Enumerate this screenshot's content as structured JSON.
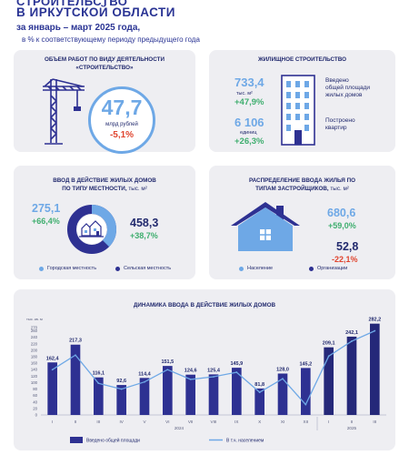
{
  "header": {
    "title_top": "СТРОИТЕЛЬСТВО",
    "title": "В ИРКУТСКОЙ ОБЛАСТИ",
    "subtitle": "за январь – март 2025 года,",
    "note": "в % к соответствующему периоду предыдущего года"
  },
  "works": {
    "title_line1": "ОБЪЕМ РАБОТ ПО ВИДУ ДЕЯТЕЛЬНОСТИ",
    "title_line2": "«СТРОИТЕЛЬСТВО»",
    "value": "47,7",
    "unit": "млрд рублей",
    "change": "-5,1%",
    "icon": "crane-icon"
  },
  "housing": {
    "title": "ЖИЛИЩНОЕ СТРОИТЕЛЬСТВО",
    "area_value": "733,4",
    "area_unit": "тыс. м²",
    "area_change": "+47,9%",
    "area_label_line1": "Введено",
    "area_label_line2": "общей площади",
    "area_label_line3": "жилых домов",
    "flats_value": "6 106",
    "flats_unit": "единиц",
    "flats_change": "+26,3%",
    "flats_label_line1": "Построено",
    "flats_label_line2": "квартир",
    "icon": "apartment-building-icon"
  },
  "locality": {
    "title_line1": "ВВОД В ДЕЙСТВИЕ ЖИЛЫХ ДОМОВ",
    "title_line2": "ПО ТИПУ МЕСТНОСТИ,",
    "unit": "тыс. м²",
    "urban_value": "275,1",
    "urban_change": "+66,4%",
    "rural_value": "458,3",
    "rural_change": "+38,7%",
    "legend_urban": "Городская местность",
    "legend_rural": "Сельская местность",
    "color_urban": "#6ea8e6",
    "color_rural": "#2e3192",
    "icon": "village-houses-icon"
  },
  "builders": {
    "title_line1": "РАСПРЕДЕЛЕНИЕ ВВОДА ЖИЛЬЯ ПО",
    "title_line2": "ТИПАМ ЗАСТРОЙЩИКОВ,",
    "unit": "тыс. м²",
    "population_value": "680,6",
    "population_change": "+59,0%",
    "org_value": "52,8",
    "org_change": "-22,1%",
    "legend_population": "Население",
    "legend_org": "Организации",
    "color_population": "#6ea8e6",
    "color_org": "#2e3192",
    "icon": "house-icon"
  },
  "chart_data": {
    "type": "bar",
    "title": "ДИНАМИКА ВВОДА В ДЕЙСТВИЕ ЖИЛЫХ ДОМОВ",
    "ylabel": "тыс. кв. м",
    "ylim": [
      0,
      270
    ],
    "yticks": [
      0,
      20,
      40,
      60,
      80,
      100,
      120,
      140,
      160,
      180,
      200,
      220,
      240,
      260,
      270
    ],
    "categories": [
      "I",
      "II",
      "III",
      "IV",
      "V",
      "VI",
      "VII",
      "VIII",
      "IX",
      "X",
      "XI",
      "XII",
      "I",
      "II",
      "III"
    ],
    "year_labels": [
      {
        "label": "2024",
        "from": 0,
        "to": 11
      },
      {
        "label": "2025",
        "from": 12,
        "to": 14
      }
    ],
    "series": [
      {
        "name": "Введено общей площади",
        "type": "bar",
        "values": [
          162.4,
          217.3,
          116.1,
          92.6,
          114.4,
          151.5,
          124.6,
          125.4,
          145.9,
          81.8,
          128.0,
          145.2,
          209.1,
          242.1,
          282.2
        ],
        "labels": [
          "162,4",
          "217,3",
          "116,1",
          "92,6",
          "114,4",
          "151,5",
          "124,6",
          "125,4",
          "145,9",
          "81,8",
          "128,0",
          "145,2",
          "209,1",
          "242,1",
          "282,2"
        ],
        "color_2024": "#2e3192",
        "color_2025": "#252879"
      },
      {
        "name": "В т.ч. населением",
        "type": "line",
        "values": [
          140,
          185,
          98,
          80,
          102,
          140,
          110,
          118,
          132,
          70,
          112,
          32,
          182,
          228,
          260
        ],
        "color": "#6ea8e6"
      }
    ]
  }
}
